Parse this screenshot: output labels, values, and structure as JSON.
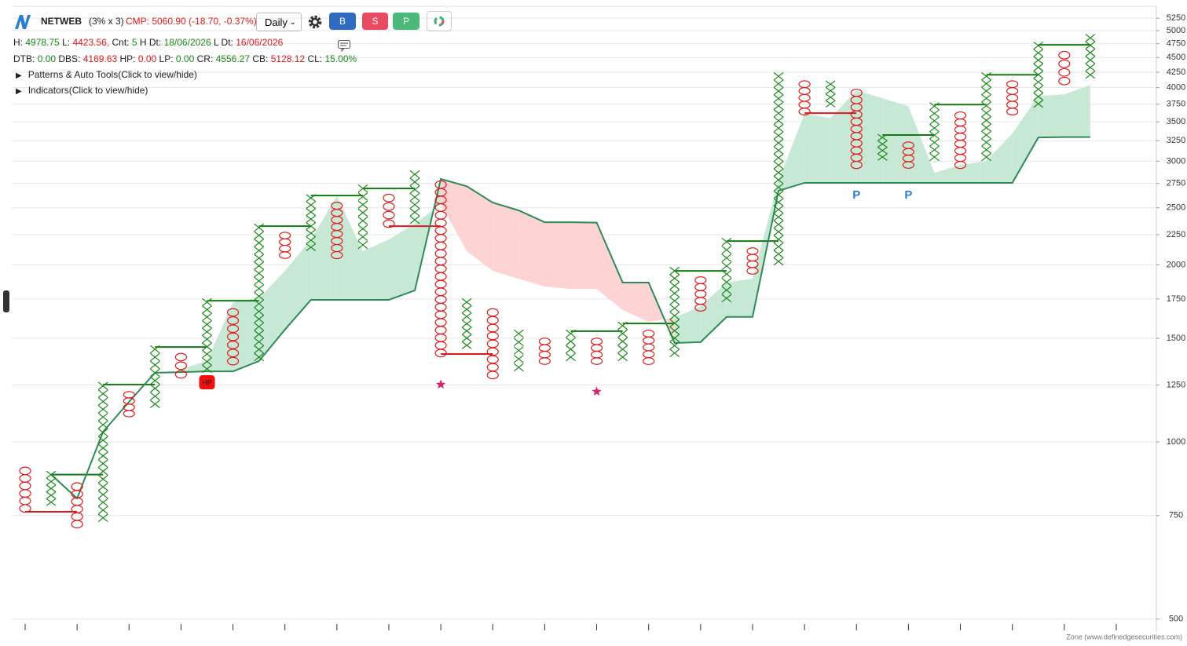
{
  "header": {
    "symbol": "NETWEB",
    "setting": "(3% x 3)",
    "cmp": "CMP: 5060.90 (-18.70, -0.37%)",
    "timeframe": "Daily",
    "buttons": [
      "B",
      "S",
      "P"
    ],
    "info_line_1": [
      {
        "label": "H:",
        "value": "4978.75"
      },
      {
        "label": "L:",
        "value": "4423.56,"
      },
      {
        "label": "Cnt:",
        "value": "5"
      },
      {
        "label": "H Dt:",
        "value": "18/06/2026"
      },
      {
        "label": "L Dt:",
        "value": "16/06/2026"
      }
    ],
    "info_line_2": [
      {
        "label": "DTB:",
        "value": "0.00"
      },
      {
        "label": "DBS:",
        "value": "4169.63"
      },
      {
        "label": "HP:",
        "value": "0.00"
      },
      {
        "label": "LP:",
        "value": "0.00"
      },
      {
        "label": "CR:",
        "value": "4556.27"
      },
      {
        "label": "CB:",
        "value": "5128.12"
      },
      {
        "label": "CL:",
        "value": "15.00%"
      }
    ],
    "toggles": [
      "Patterns & Auto Tools(Click to view/hide)",
      "Indicators(Click to view/hide)"
    ]
  },
  "chart_data": {
    "type": "pnf",
    "log_scale": true,
    "grid": true,
    "ylim": [
      483,
      5500
    ],
    "yticks": [
      500,
      750,
      1000,
      1250,
      1500,
      1750,
      2000,
      2250,
      2500,
      2750,
      3000,
      3250,
      3500,
      3750,
      4000,
      4250,
      4500,
      4750,
      5000,
      5250
    ],
    "x_color": "#1a8a1a",
    "o_color": "#e0191a",
    "columns": [
      {
        "type": "O",
        "low": 771,
        "high": 893
      },
      {
        "type": "X",
        "low": 790,
        "high": 880
      },
      {
        "type": "O",
        "low": 725,
        "high": 840
      },
      {
        "type": "X",
        "low": 743,
        "high": 1245
      },
      {
        "type": "O",
        "low": 1117,
        "high": 1203
      },
      {
        "type": "X",
        "low": 1160,
        "high": 1437
      },
      {
        "type": "O",
        "low": 1303,
        "high": 1394
      },
      {
        "type": "X",
        "low": 1331,
        "high": 1728
      },
      {
        "type": "O",
        "low": 1372,
        "high": 1660
      },
      {
        "type": "X",
        "low": 1394,
        "high": 2313
      },
      {
        "type": "O",
        "low": 2077,
        "high": 2243
      },
      {
        "type": "X",
        "low": 2142,
        "high": 2598
      },
      {
        "type": "O",
        "low": 2077,
        "high": 2520
      },
      {
        "type": "X",
        "low": 2162,
        "high": 2696
      },
      {
        "type": "O",
        "low": 2349,
        "high": 2598
      },
      {
        "type": "X",
        "low": 2385,
        "high": 2849
      },
      {
        "type": "O",
        "low": 1416,
        "high": 2737
      },
      {
        "type": "X",
        "low": 1460,
        "high": 1728
      },
      {
        "type": "O",
        "low": 1299,
        "high": 1660
      },
      {
        "type": "X",
        "low": 1339,
        "high": 1528
      },
      {
        "type": "O",
        "low": 1372,
        "high": 1482
      },
      {
        "type": "X",
        "low": 1394,
        "high": 1528
      },
      {
        "type": "O",
        "low": 1372,
        "high": 1482
      },
      {
        "type": "X",
        "low": 1394,
        "high": 1576
      },
      {
        "type": "O",
        "low": 1372,
        "high": 1528
      },
      {
        "type": "X",
        "low": 1416,
        "high": 1953
      },
      {
        "type": "O",
        "low": 1691,
        "high": 1883
      },
      {
        "type": "X",
        "low": 1755,
        "high": 2188
      },
      {
        "type": "O",
        "low": 1953,
        "high": 2110
      },
      {
        "type": "X",
        "low": 2027,
        "high": 4182
      },
      {
        "type": "O",
        "low": 3643,
        "high": 4055
      },
      {
        "type": "X",
        "low": 3755,
        "high": 4055
      },
      {
        "type": "O",
        "low": 2956,
        "high": 3920
      },
      {
        "type": "X",
        "low": 3049,
        "high": 3292
      },
      {
        "type": "O",
        "low": 2956,
        "high": 3193
      },
      {
        "type": "X",
        "low": 3049,
        "high": 3720
      },
      {
        "type": "O",
        "low": 2956,
        "high": 3588
      },
      {
        "type": "X",
        "low": 3049,
        "high": 4182
      },
      {
        "type": "O",
        "low": 3643,
        "high": 4055
      },
      {
        "type": "X",
        "low": 3755,
        "high": 4716
      },
      {
        "type": "O",
        "low": 4105,
        "high": 4543
      },
      {
        "type": "X",
        "low": 4207,
        "high": 4860
      }
    ],
    "trend_line": {
      "color": "#2e8b57",
      "values": [
        null,
        880,
        802,
        1041,
        1170,
        1311,
        1314,
        1318,
        1318,
        1372,
        1552,
        1744,
        1744,
        1744,
        1744,
        1809,
        2798,
        2720,
        2551,
        2474,
        2363,
        2363,
        2359,
        1866,
        1866,
        1473,
        1478,
        1631,
        1631,
        2672,
        2756,
        2756,
        2756,
        2756,
        2756,
        2756,
        2756,
        2756,
        2756,
        3292,
        3297,
        3297
      ]
    },
    "cloud_line": {
      "values": [
        null,
        null,
        null,
        null,
        null,
        null,
        1331,
        1372,
        1728,
        1755,
        1953,
        2209,
        2615,
        2110,
        2209,
        2349,
        2536,
        2110,
        1953,
        1894,
        1837,
        1820,
        1820,
        1676,
        1600,
        1626,
        1701,
        1866,
        1894,
        2781,
        3611,
        3552,
        3958,
        3838,
        3720,
        2866,
        2956,
        3003,
        3343,
        3872,
        3896,
        4042
      ]
    },
    "cloud_colors": [
      "#c8e8d6",
      "#fdd3d3"
    ],
    "levels": [
      {
        "column": 0,
        "value": 761,
        "color": "#e0191a"
      },
      {
        "column": 1,
        "value": 880,
        "color": "#137a13"
      },
      {
        "column": 3,
        "value": 1252,
        "color": "#137a13"
      },
      {
        "column": 5,
        "value": 1450,
        "color": "#137a13"
      },
      {
        "column": 7,
        "value": 1738,
        "color": "#137a13"
      },
      {
        "column": 9,
        "value": 2327,
        "color": "#137a13"
      },
      {
        "column": 11,
        "value": 2623,
        "color": "#137a13"
      },
      {
        "column": 13,
        "value": 2696,
        "color": "#137a13"
      },
      {
        "column": 14,
        "value": 2327,
        "color": "#e0191a"
      },
      {
        "column": 16,
        "value": 1411,
        "color": "#e0191a"
      },
      {
        "column": 21,
        "value": 1543,
        "color": "#137a13"
      },
      {
        "column": 23,
        "value": 1590,
        "color": "#137a13"
      },
      {
        "column": 25,
        "value": 1953,
        "color": "#137a13"
      },
      {
        "column": 27,
        "value": 2195,
        "color": "#137a13"
      },
      {
        "column": 30,
        "value": 3620,
        "color": "#e0191a"
      },
      {
        "column": 33,
        "value": 3323,
        "color": "#137a13"
      },
      {
        "column": 35,
        "value": 3743,
        "color": "#137a13"
      },
      {
        "column": 37,
        "value": 4207,
        "color": "#137a13"
      },
      {
        "column": 39,
        "value": 4729,
        "color": "#137a13"
      }
    ],
    "markers": [
      {
        "column": 7,
        "value": 1263,
        "label": "HP"
      },
      {
        "column": 16,
        "value": 1252,
        "symbol": "star"
      },
      {
        "column": 22,
        "value": 1218,
        "symbol": "star"
      },
      {
        "column": 32,
        "value": 2623,
        "label": "P"
      },
      {
        "column": 34,
        "value": 2623,
        "label": "P"
      }
    ],
    "source": "Zone (www.definedgesecurities.com)"
  }
}
